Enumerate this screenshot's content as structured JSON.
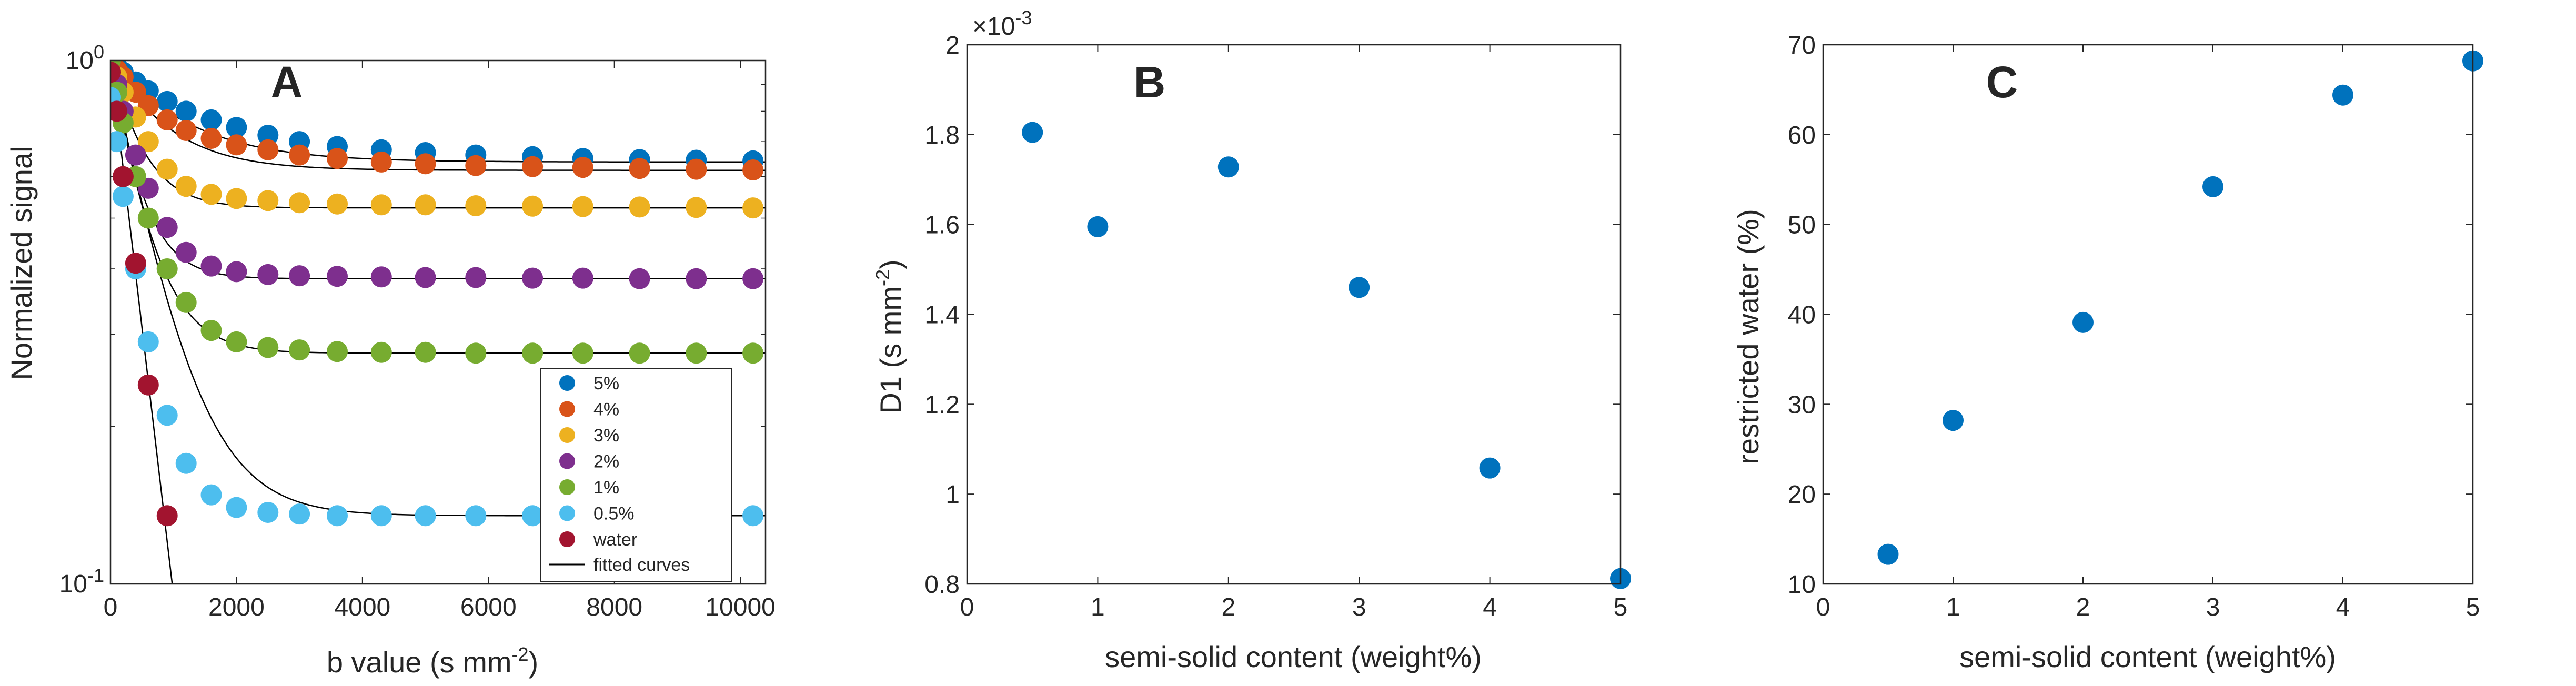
{
  "colors": {
    "5%": "#0072BD",
    "4%": "#D95319",
    "3%": "#EDB120",
    "2%": "#7E2F8E",
    "1%": "#77AC30",
    "0.5%": "#4DBEEE",
    "water": "#A2142F",
    "fit": "#000000",
    "axis": "#262626"
  },
  "chart_data": [
    {
      "type": "scatter",
      "panel": "A",
      "xlabel": "b value (s mm",
      "xlabel_exponent": "-2",
      "xlabel_close": ")",
      "ylabel": "Normalized signal",
      "xlim": [
        0,
        10400
      ],
      "ylim": [
        0.1,
        1
      ],
      "yscale": "log",
      "xticks": [
        0,
        2000,
        4000,
        6000,
        8000,
        10000
      ],
      "xtick_labels": [
        "0",
        "2000",
        "4000",
        "6000",
        "8000",
        "10000"
      ],
      "ytick_labels": [
        {
          "base": "10",
          "exp": "-1",
          "value": 0.1
        },
        {
          "base": "10",
          "exp": "0",
          "value": 1
        }
      ],
      "legend_position": "lower-right",
      "fit_label": "fitted curves",
      "b_values": [
        0,
        100,
        200,
        400,
        600,
        900,
        1200,
        1600,
        2000,
        2500,
        3000,
        3600,
        4300,
        5000,
        5800,
        6700,
        7500,
        8400,
        9300,
        10200
      ],
      "series": [
        {
          "name": "5%",
          "color_key": "5%",
          "y": [
            1.0,
            0.975,
            0.95,
            0.91,
            0.875,
            0.835,
            0.8,
            0.77,
            0.745,
            0.72,
            0.7,
            0.685,
            0.675,
            0.667,
            0.66,
            0.655,
            0.65,
            0.647,
            0.645,
            0.643
          ],
          "fit": {
            "a": 0.64,
            "b": 0.36,
            "c": 0.0009
          }
        },
        {
          "name": "4%",
          "color_key": "4%",
          "y": [
            1.0,
            0.96,
            0.93,
            0.87,
            0.82,
            0.77,
            0.735,
            0.71,
            0.69,
            0.675,
            0.66,
            0.65,
            0.64,
            0.635,
            0.63,
            0.627,
            0.625,
            0.622,
            0.62,
            0.618
          ],
          "fit": {
            "a": 0.617,
            "b": 0.383,
            "c": 0.0012
          }
        },
        {
          "name": "3%",
          "color_key": "3%",
          "y": [
            1.0,
            0.93,
            0.87,
            0.78,
            0.7,
            0.62,
            0.575,
            0.555,
            0.545,
            0.54,
            0.535,
            0.532,
            0.53,
            0.53,
            0.528,
            0.527,
            0.526,
            0.525,
            0.524,
            0.523
          ],
          "fit": {
            "a": 0.523,
            "b": 0.477,
            "c": 0.0022
          }
        },
        {
          "name": "2%",
          "color_key": "2%",
          "y": [
            1.0,
            0.9,
            0.8,
            0.66,
            0.57,
            0.48,
            0.43,
            0.405,
            0.395,
            0.39,
            0.388,
            0.387,
            0.386,
            0.385,
            0.385,
            0.384,
            0.384,
            0.383,
            0.383,
            0.383
          ],
          "fit": {
            "a": 0.383,
            "b": 0.617,
            "c": 0.0025
          }
        },
        {
          "name": "1%",
          "color_key": "1%",
          "y": [
            1.0,
            0.87,
            0.76,
            0.6,
            0.5,
            0.4,
            0.345,
            0.305,
            0.29,
            0.283,
            0.28,
            0.278,
            0.277,
            0.277,
            0.276,
            0.276,
            0.276,
            0.276,
            0.276,
            0.276
          ],
          "fit": {
            "a": 0.276,
            "b": 0.724,
            "c": 0.0021
          }
        },
        {
          "name": "0.5%",
          "color_key": "0.5%",
          "y": [
            0.85,
            0.7,
            0.55,
            0.4,
            0.29,
            0.21,
            0.17,
            0.148,
            0.14,
            0.137,
            0.136,
            0.135,
            0.135,
            0.135,
            0.135,
            0.135,
            0.135,
            0.135,
            0.135,
            0.135
          ],
          "fit": {
            "a": 0.135,
            "b": 0.865,
            "c": 0.00155
          }
        },
        {
          "name": "water",
          "color_key": "water",
          "x": [
            0,
            100,
            200,
            400,
            600,
            900
          ],
          "y": [
            0.95,
            0.8,
            0.6,
            0.41,
            0.24,
            0.135
          ],
          "fit": {
            "a": 0.0,
            "b": 1.0,
            "c": 0.00235
          }
        }
      ]
    },
    {
      "type": "scatter",
      "panel": "B",
      "xlabel": "semi-solid content (weight%)",
      "ylabel": "D1 (s mm",
      "ylabel_exponent": "-2",
      "ylabel_close": ")",
      "exponent_base": "×10",
      "exponent_power": "-3",
      "xlim": [
        0,
        5
      ],
      "ylim": [
        0.8,
        2.0
      ],
      "xticks": [
        0,
        1,
        2,
        3,
        4,
        5
      ],
      "xtick_labels": [
        "0",
        "1",
        "2",
        "3",
        "4",
        "5"
      ],
      "yticks": [
        0.8,
        1.0,
        1.2,
        1.4,
        1.6,
        1.8,
        2.0
      ],
      "ytick_labels": [
        "0.8",
        "1",
        "1.2",
        "1.4",
        "1.6",
        "1.8",
        "2"
      ],
      "x": [
        0.5,
        1,
        2,
        3,
        4,
        5
      ],
      "y": [
        1.805,
        1.595,
        1.728,
        1.46,
        1.058,
        0.812
      ]
    },
    {
      "type": "scatter",
      "panel": "C",
      "xlabel": "semi-solid content (weight%)",
      "ylabel": "restricted water (%)",
      "xlim": [
        0,
        5
      ],
      "ylim": [
        10,
        70
      ],
      "xticks": [
        0,
        1,
        2,
        3,
        4,
        5
      ],
      "xtick_labels": [
        "0",
        "1",
        "2",
        "3",
        "4",
        "5"
      ],
      "yticks": [
        10,
        20,
        30,
        40,
        50,
        60,
        70
      ],
      "ytick_labels": [
        "10",
        "20",
        "30",
        "40",
        "50",
        "60",
        "70"
      ],
      "x": [
        0.5,
        1,
        2,
        3,
        4,
        5
      ],
      "y": [
        13.3,
        28.2,
        39.1,
        54.2,
        64.4,
        68.2
      ]
    }
  ]
}
